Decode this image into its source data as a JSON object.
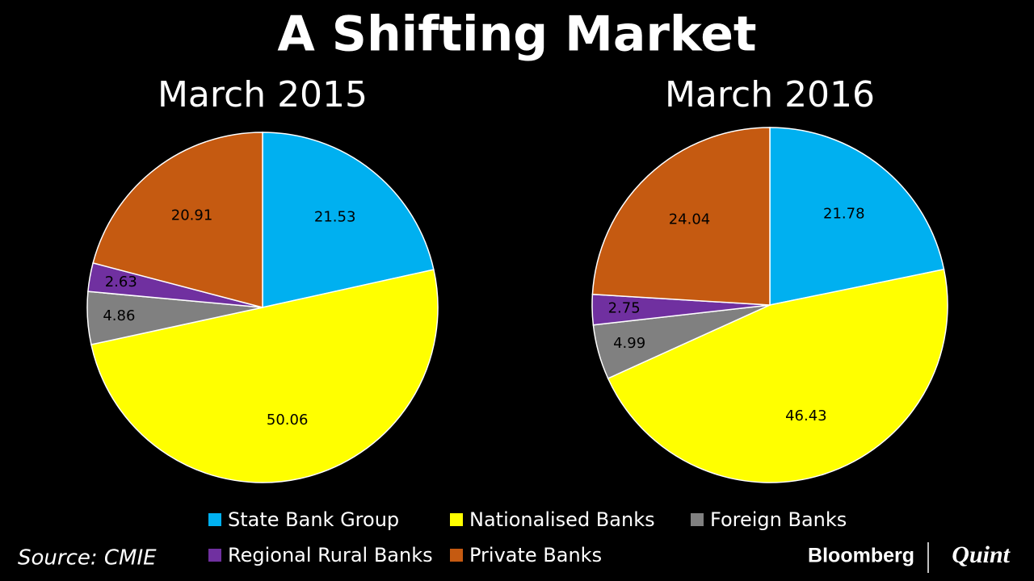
{
  "title": "A Shifting Market",
  "source": "Source: CMIE",
  "brand": {
    "name": "Bloomberg",
    "partner": "Quint"
  },
  "chart_data": [
    {
      "type": "pie",
      "title": "March 2015",
      "categories": [
        "State Bank Group",
        "Nationalised Banks",
        "Foreign Banks",
        "Regional Rural Banks",
        "Private Banks"
      ],
      "values": [
        21.53,
        50.06,
        4.86,
        2.63,
        20.91
      ],
      "colors": [
        "#00b0f0",
        "#ffff00",
        "#808080",
        "#7030a0",
        "#c55a11"
      ]
    },
    {
      "type": "pie",
      "title": "March 2016",
      "categories": [
        "State Bank Group",
        "Nationalised Banks",
        "Foreign Banks",
        "Regional Rural Banks",
        "Private Banks"
      ],
      "values": [
        21.78,
        46.43,
        4.99,
        2.75,
        24.04
      ],
      "colors": [
        "#00b0f0",
        "#ffff00",
        "#808080",
        "#7030a0",
        "#c55a11"
      ]
    }
  ]
}
